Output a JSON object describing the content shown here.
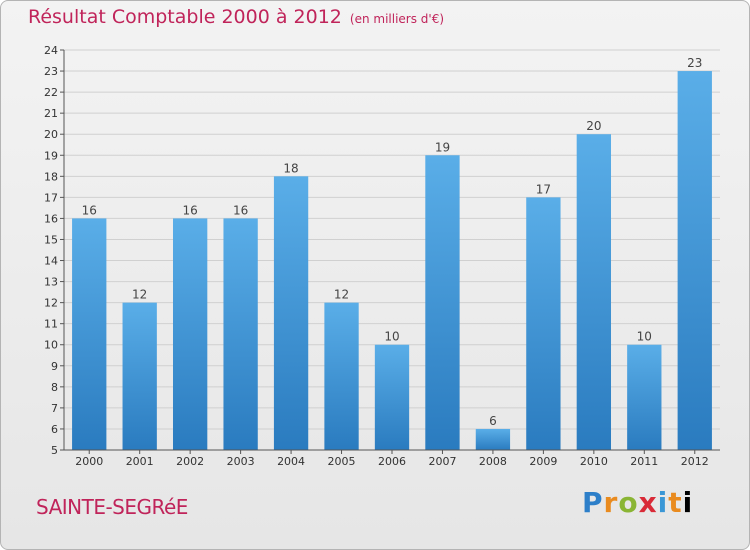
{
  "header": {
    "title": "Résultat Comptable 2000 à 2012",
    "subtitle": "(en milliers d'€)"
  },
  "footer": {
    "commune": "SAINTE-SEGRéE",
    "brand": [
      "P",
      "r",
      "o",
      "x",
      "i",
      "t",
      "i"
    ]
  },
  "chart_data": {
    "type": "bar",
    "title": "Résultat Comptable 2000 à 2012",
    "subtitle": "(en milliers d'€)",
    "xlabel": "",
    "ylabel": "",
    "categories": [
      "2000",
      "2001",
      "2002",
      "2003",
      "2004",
      "2005",
      "2006",
      "2007",
      "2008",
      "2009",
      "2010",
      "2011",
      "2012"
    ],
    "values": [
      16,
      12,
      16,
      16,
      18,
      12,
      10,
      19,
      6,
      17,
      20,
      10,
      23
    ],
    "ylim": [
      5,
      24
    ],
    "yticks": [
      5,
      6,
      7,
      8,
      9,
      10,
      11,
      12,
      13,
      14,
      15,
      16,
      17,
      18,
      19,
      20,
      21,
      22,
      23,
      24
    ],
    "grid": true,
    "colors": {
      "bar_top": "#5aaee8",
      "bar_bottom": "#2a7bbf",
      "grid": "#d0d0d0",
      "accent": "#c0245a"
    }
  }
}
